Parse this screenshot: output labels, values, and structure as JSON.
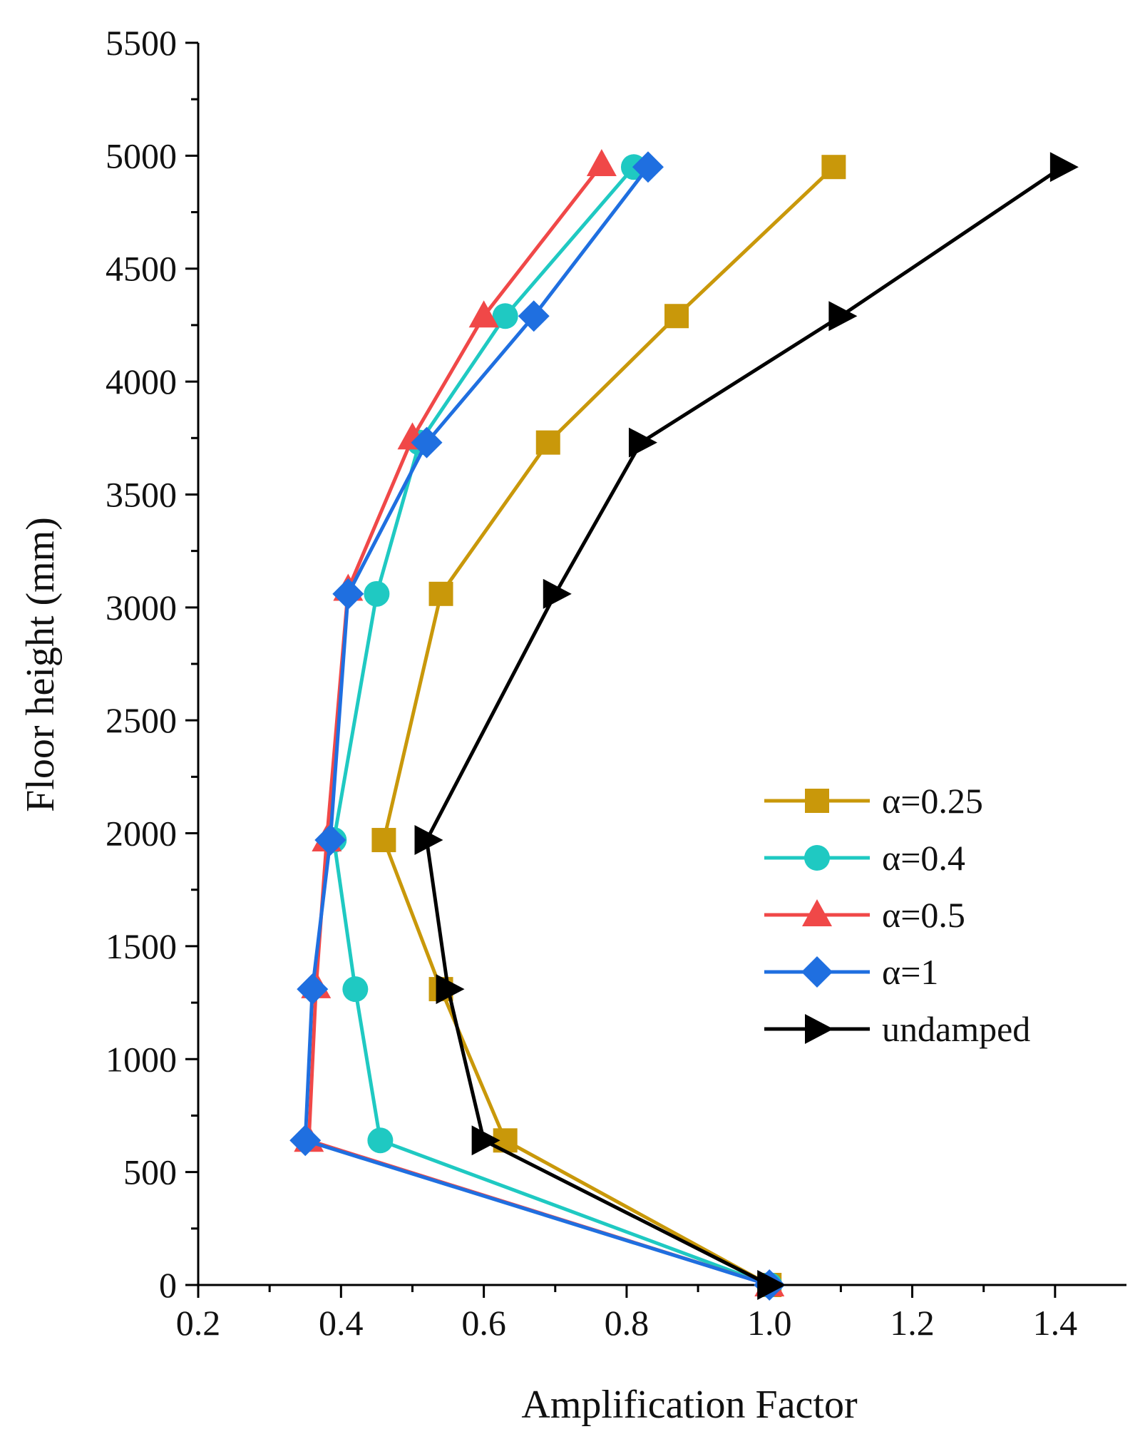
{
  "chart_data": {
    "type": "line",
    "title": "",
    "xlabel": "Amplification Factor",
    "ylabel": "Floor height (mm)",
    "xlim": [
      0.2,
      1.5
    ],
    "ylim": [
      0,
      5500
    ],
    "x_ticks": [
      "0.2",
      "0.4",
      "0.6",
      "0.8",
      "1.0",
      "1.2",
      "1.4"
    ],
    "y_ticks": [
      "0",
      "500",
      "1000",
      "1500",
      "2000",
      "2500",
      "3000",
      "3500",
      "4000",
      "4500",
      "5000",
      "5500"
    ],
    "grid": false,
    "legend_position": "right",
    "series": [
      {
        "name": "α=0.25",
        "color": "#C9980A",
        "marker": "square",
        "points": [
          [
            1.0,
            0
          ],
          [
            0.63,
            640
          ],
          [
            0.54,
            1310
          ],
          [
            0.46,
            1970
          ],
          [
            0.54,
            3060
          ],
          [
            0.69,
            3730
          ],
          [
            0.87,
            4290
          ],
          [
            1.09,
            4950
          ]
        ]
      },
      {
        "name": "α=0.4",
        "color": "#1FC9C2",
        "marker": "circle",
        "points": [
          [
            1.0,
            0
          ],
          [
            0.455,
            640
          ],
          [
            0.42,
            1310
          ],
          [
            0.39,
            1970
          ],
          [
            0.45,
            3060
          ],
          [
            0.51,
            3730
          ],
          [
            0.63,
            4290
          ],
          [
            0.81,
            4950
          ]
        ]
      },
      {
        "name": "α=0.5",
        "color": "#F04848",
        "marker": "triangle-up",
        "points": [
          [
            1.0,
            0
          ],
          [
            0.355,
            640
          ],
          [
            0.365,
            1320
          ],
          [
            0.38,
            1970
          ],
          [
            0.41,
            3080
          ],
          [
            0.5,
            3750
          ],
          [
            0.6,
            4290
          ],
          [
            0.765,
            4960
          ]
        ]
      },
      {
        "name": "α=1",
        "color": "#1F6FE0",
        "marker": "diamond",
        "points": [
          [
            1.0,
            0
          ],
          [
            0.35,
            640
          ],
          [
            0.36,
            1310
          ],
          [
            0.385,
            1970
          ],
          [
            0.41,
            3060
          ],
          [
            0.52,
            3730
          ],
          [
            0.67,
            4290
          ],
          [
            0.83,
            4950
          ]
        ]
      },
      {
        "name": "undamped",
        "color": "#000000",
        "marker": "triangle-right",
        "points": [
          [
            1.0,
            0
          ],
          [
            0.6,
            640
          ],
          [
            0.55,
            1310
          ],
          [
            0.52,
            1970
          ],
          [
            0.7,
            3060
          ],
          [
            0.82,
            3730
          ],
          [
            1.1,
            4290
          ],
          [
            1.41,
            4950
          ]
        ]
      }
    ]
  }
}
